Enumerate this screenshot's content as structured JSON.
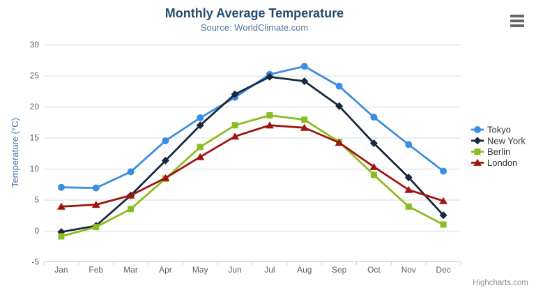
{
  "chart": {
    "credits_label": "Highcharts.com",
    "export_menu_icon": "hamburger-icon"
  },
  "chart_data": {
    "type": "line",
    "title": "Monthly Average Temperature",
    "subtitle": "Source: WorldClimate.com",
    "categories": [
      "Jan",
      "Feb",
      "Mar",
      "Apr",
      "May",
      "Jun",
      "Jul",
      "Aug",
      "Sep",
      "Oct",
      "Nov",
      "Dec"
    ],
    "series": [
      {
        "name": "Tokyo",
        "color": "#3c8de0",
        "marker": "circle",
        "values": [
          7.0,
          6.9,
          9.5,
          14.5,
          18.2,
          21.5,
          25.2,
          26.5,
          23.3,
          18.3,
          13.9,
          9.6
        ]
      },
      {
        "name": "New York",
        "color": "#16293f",
        "marker": "diamond",
        "values": [
          -0.2,
          0.8,
          5.7,
          11.3,
          17.0,
          22.0,
          24.8,
          24.1,
          20.1,
          14.1,
          8.6,
          2.5
        ]
      },
      {
        "name": "Berlin",
        "color": "#8bbc21",
        "marker": "square",
        "values": [
          -0.9,
          0.6,
          3.5,
          8.4,
          13.5,
          17.0,
          18.6,
          17.9,
          14.3,
          9.0,
          3.9,
          1.0
        ]
      },
      {
        "name": "London",
        "color": "#9e1510",
        "marker": "triangle",
        "values": [
          3.9,
          4.2,
          5.7,
          8.5,
          11.9,
          15.2,
          17.0,
          16.6,
          14.2,
          10.3,
          6.6,
          4.8
        ]
      }
    ],
    "xlabel": "",
    "ylabel": "Temperature (°C)",
    "ylim": [
      -5,
      30
    ],
    "ytick_step": 5,
    "yticks": [
      -5,
      0,
      5,
      10,
      15,
      20,
      25,
      30
    ],
    "grid": true,
    "legend_position": "right"
  },
  "colors": {
    "title": "#274b6d",
    "subtitle": "#4d759e",
    "axis_title": "#4572a7",
    "tick_label": "#606060",
    "grid_line": "#d8d8d8",
    "axis_line": "#c3d3e2",
    "legend_text": "#333333",
    "credits": "#909090",
    "menu_icon": "#666666",
    "background": "#ffffff"
  }
}
